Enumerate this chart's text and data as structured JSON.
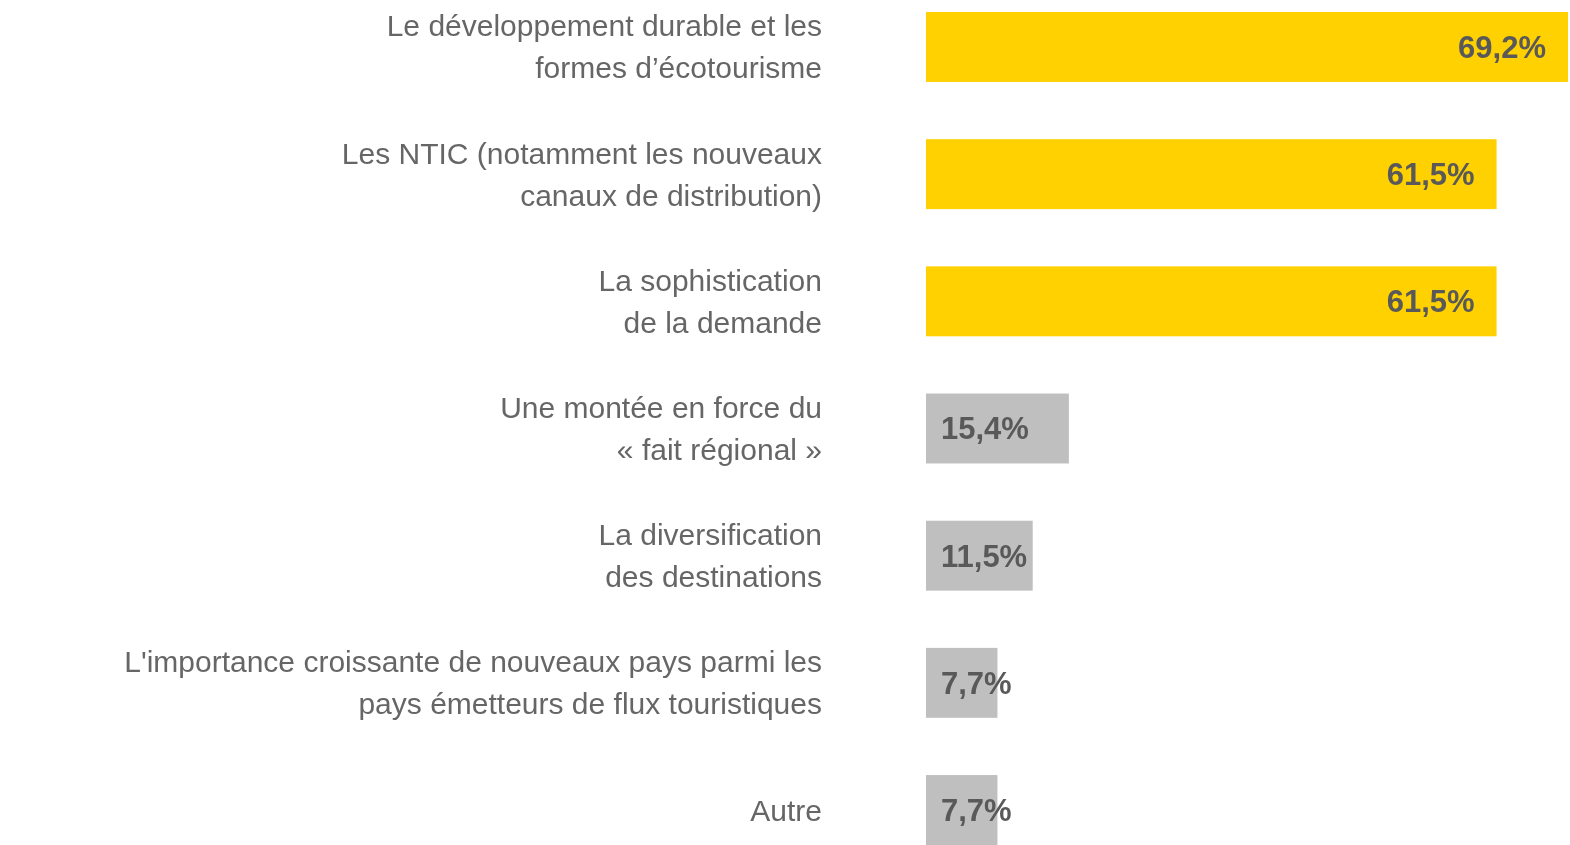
{
  "chart_data": {
    "type": "bar",
    "orientation": "horizontal",
    "categories": [
      "Le développement durable et les\nformes d’écotourisme",
      "Les NTIC (notamment les nouveaux\ncanaux de distribution)",
      "La sophistication\nde la demande",
      "Une montée en force du\n« fait régional »",
      "La diversification\ndes destinations",
      "L'importance croissante de nouveaux pays parmi les\npays émetteurs de flux touristiques",
      "Autre"
    ],
    "values": [
      69.2,
      61.5,
      61.5,
      15.4,
      11.5,
      7.7,
      7.7
    ],
    "colors": [
      "#ffd100",
      "#ffd100",
      "#ffd100",
      "#bfbfbf",
      "#bfbfbf",
      "#bfbfbf",
      "#bfbfbf"
    ],
    "value_labels": [
      "69,2%",
      "61,5%",
      "61,5%",
      "15,4%",
      "11,5%",
      "7,7%",
      "7,7%"
    ]
  }
}
